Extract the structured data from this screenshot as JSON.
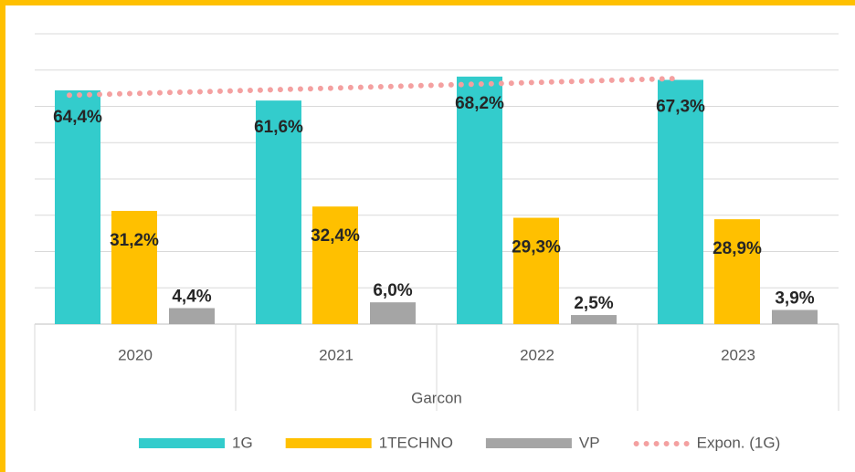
{
  "chart_data": {
    "type": "bar",
    "categories": [
      "2020",
      "2021",
      "2022",
      "2023"
    ],
    "group_label": "Garcon",
    "series": [
      {
        "name": "1G",
        "color": "#33CCCC",
        "values": [
          64.4,
          61.6,
          68.2,
          67.3
        ],
        "value_labels": [
          "64,4%",
          "61,6%",
          "68,2%",
          "67,3%"
        ]
      },
      {
        "name": "1TECHNO",
        "color": "#FFC000",
        "values": [
          31.2,
          32.4,
          29.3,
          28.9
        ],
        "value_labels": [
          "31,2%",
          "32,4%",
          "29,3%",
          "28,9%"
        ]
      },
      {
        "name": "VP",
        "color": "#A5A5A5",
        "values": [
          4.4,
          6.0,
          2.5,
          3.9
        ],
        "value_labels": [
          "4,4%",
          "6,0%",
          "2,5%",
          "3,9%"
        ]
      }
    ],
    "trendline": {
      "name": "Expon. (1G)",
      "color": "#F4A0A0",
      "kind": "exponential",
      "series": 0
    },
    "ylim": [
      0,
      80
    ],
    "yticks": [
      0,
      10,
      20,
      30,
      40,
      50,
      60,
      70,
      80
    ],
    "grid": true,
    "legend": "bottom"
  }
}
